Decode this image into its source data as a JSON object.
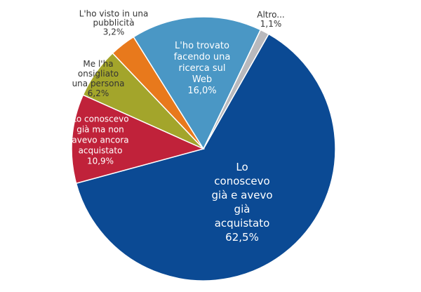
{
  "chart_data": {
    "type": "pie",
    "categories": [
      "Lo conoscevo già e avevo già acquistato",
      "Lo conoscevo già ma non avevo ancora acquistato",
      "Me l'ha onsigliato una persona",
      "L'ho visto in una pubblicità",
      "L'ho trovato facendo una ricerca sul Web",
      "Altro..."
    ],
    "values": [
      62.5,
      10.9,
      6.2,
      3.2,
      16.0,
      1.1
    ],
    "value_labels": [
      "62,5%",
      "10,9%",
      "6,2%",
      "3,2%",
      "16,0%",
      "1,1%"
    ],
    "colors": [
      "#0b4a94",
      "#c0223a",
      "#a3a52b",
      "#e8791c",
      "#4a97c5",
      "#b9b9bd"
    ]
  }
}
